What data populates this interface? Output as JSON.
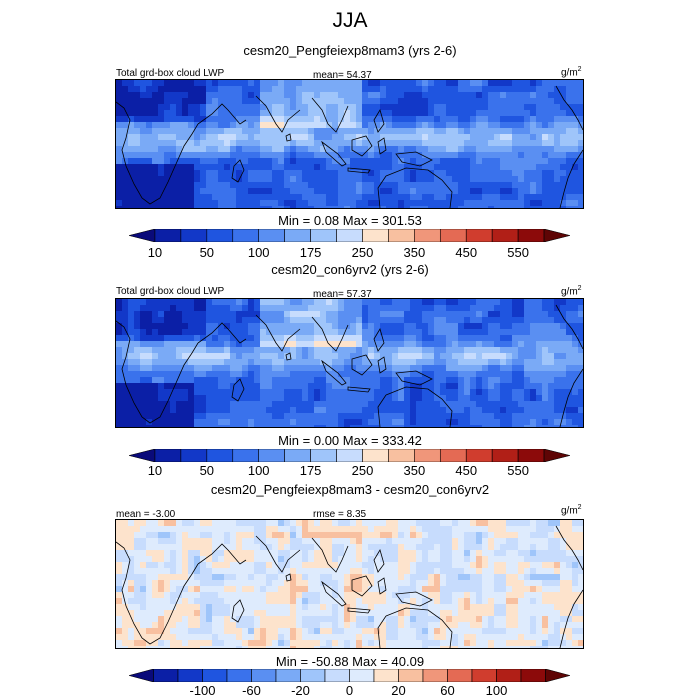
{
  "title": "JJA",
  "colors": {
    "sequential": [
      "#0a0a7a",
      "#0b1fa6",
      "#1238c8",
      "#1f55e0",
      "#3a72ec",
      "#5a8ff2",
      "#7aaaf6",
      "#9fc5fa",
      "#c7dcfd",
      "#fde3cc",
      "#f8c0a0",
      "#f0967a",
      "#e46a54",
      "#d03d2e",
      "#b11f17",
      "#8c0a0a",
      "#5e0505"
    ],
    "diverging": [
      "#0a0a7a",
      "#0b1fa6",
      "#1238c8",
      "#1f55e0",
      "#3a72ec",
      "#5a8ff2",
      "#7aaaf6",
      "#9fc5fa",
      "#c7dcfd",
      "#deebfd",
      "#fde3cc",
      "#f8c0a0",
      "#f0967a",
      "#e46a54",
      "#d03d2e",
      "#b11f17",
      "#8c0a0a",
      "#5e0505"
    ]
  },
  "panels": [
    {
      "title": "cesm20_Pengfeiexp8mam3 (yrs 2-6)",
      "left_label": "Total grd-box cloud LWP",
      "center_label": "mean=  54.37",
      "units": "g/m",
      "units_sup": "2",
      "minmax": "Min =   0.08 Max = 301.53",
      "colorbar_labels": [
        "10",
        "50",
        "100",
        "175",
        "250",
        "350",
        "450",
        "550"
      ]
    },
    {
      "title": "cesm20_con6yrv2 (yrs 2-6)",
      "left_label": "Total grd-box cloud LWP",
      "center_label": "mean=  57.37",
      "units": "g/m",
      "units_sup": "2",
      "minmax": "Min =   0.00 Max = 333.42",
      "colorbar_labels": [
        "10",
        "50",
        "100",
        "175",
        "250",
        "350",
        "450",
        "550"
      ]
    },
    {
      "title": "cesm20_Pengfeiexp8mam3 - cesm20_con6yrv2",
      "left_label": "mean =  -3.00",
      "center_label": "rmse =   8.35",
      "units": "g/m",
      "units_sup": "2",
      "minmax": "Min = -50.88 Max =  40.09",
      "colorbar_labels": [
        "-100",
        "-60",
        "-20",
        "0",
        "20",
        "60",
        "100"
      ]
    }
  ],
  "chart_data": [
    {
      "type": "heatmap",
      "title": "cesm20_Pengfeiexp8mam3 (yrs 2-6)",
      "variable": "Total grd-box cloud LWP",
      "units": "g/m2",
      "season": "JJA",
      "mean": 54.37,
      "min": 0.08,
      "max": 301.53,
      "colorbar_labels": [
        10,
        50,
        100,
        175,
        250,
        350,
        450,
        550
      ]
    },
    {
      "type": "heatmap",
      "title": "cesm20_con6yrv2 (yrs 2-6)",
      "variable": "Total grd-box cloud LWP",
      "units": "g/m2",
      "season": "JJA",
      "mean": 57.37,
      "min": 0.0,
      "max": 333.42,
      "colorbar_labels": [
        10,
        50,
        100,
        175,
        250,
        350,
        450,
        550
      ]
    },
    {
      "type": "heatmap",
      "title": "cesm20_Pengfeiexp8mam3 - cesm20_con6yrv2",
      "units": "g/m2",
      "season": "JJA",
      "mean": -3.0,
      "rmse": 8.35,
      "min": -50.88,
      "max": 40.09,
      "colorbar_labels": [
        -100,
        -60,
        -20,
        0,
        20,
        60,
        100
      ]
    }
  ]
}
